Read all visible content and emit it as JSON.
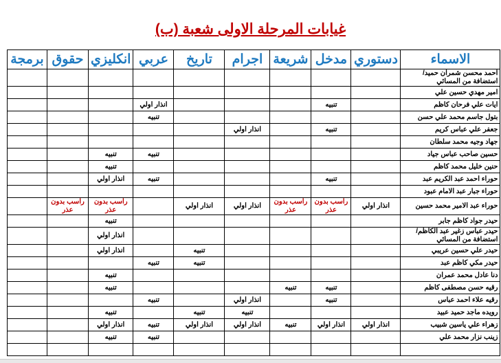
{
  "document": {
    "title": "غيابات المرحلة الاولى شعبة (ب)",
    "colors": {
      "title": "#c00000",
      "header": "#1f7ac0",
      "fail_text": "#c00000"
    }
  },
  "table": {
    "headers": [
      "الاسماء",
      "دستوري",
      "مدخل",
      "شريعة",
      "اجرام",
      "تاريخ",
      "عربي",
      "انكليزي",
      "حقوق",
      "برمجة"
    ],
    "rows": [
      {
        "name": "احمد محسن شمران حميد/ استضافة من المسائي",
        "values": [
          "",
          "",
          "",
          "",
          "",
          "",
          "",
          "",
          ""
        ]
      },
      {
        "name": "امير مهدي حسين علي",
        "values": [
          "",
          "",
          "",
          "",
          "",
          "",
          "",
          "",
          ""
        ]
      },
      {
        "name": "ايات علي فرحان كاظم",
        "values": [
          "",
          "تنبيه",
          "",
          "",
          "",
          "انذار اولي",
          "",
          "",
          ""
        ]
      },
      {
        "name": "بتول جاسم محمد علي حسن",
        "values": [
          "",
          "",
          "",
          "",
          "",
          "تنبيه",
          "",
          "",
          ""
        ]
      },
      {
        "name": "جعفر علي عباس كريم",
        "values": [
          "",
          "تنبيه",
          "",
          "انذار اولي",
          "",
          "",
          "",
          "",
          ""
        ]
      },
      {
        "name": "جهاد وجيه محمد سلطان",
        "values": [
          "",
          "",
          "",
          "",
          "",
          "",
          "",
          "",
          ""
        ]
      },
      {
        "name": "حسين صاحب عباس جياد",
        "values": [
          "",
          "",
          "",
          "",
          "",
          "تنبيه",
          "تنبيه",
          "",
          ""
        ]
      },
      {
        "name": "حنين خليل محمد كاظم",
        "values": [
          "",
          "",
          "",
          "",
          "",
          "",
          "تنبيه",
          "",
          ""
        ]
      },
      {
        "name": "حوراء احمد عبد الكريم عبد",
        "values": [
          "",
          "تنبيه",
          "",
          "",
          "",
          "تنبيه",
          "انذار اولي",
          "",
          ""
        ]
      },
      {
        "name": "حوراء جبار عبد الامام عبود",
        "values": [
          "",
          "",
          "",
          "",
          "",
          "",
          "",
          "",
          ""
        ]
      },
      {
        "name": "حوراء عبد الامير محمد حسين",
        "values": [
          "انذار اولي",
          "راسب بدون عذر",
          "راسب بدون عذر",
          "انذار اولي",
          "انذار اولي",
          "",
          "راسب بدون عذر",
          "راسب بدون عذر",
          ""
        ]
      },
      {
        "name": "حيدر جواد كاظم جابر",
        "values": [
          "",
          "",
          "",
          "",
          "",
          "",
          "تنبيه",
          "",
          ""
        ]
      },
      {
        "name": "حيدر عباس زغير عبد الكاظم/ استضافة من المسائي",
        "values": [
          "",
          "",
          "",
          "",
          "",
          "",
          "انذار اولي",
          "",
          ""
        ]
      },
      {
        "name": "حيدر علي حسين عريبي",
        "values": [
          "",
          "",
          "",
          "",
          "تنبيه",
          "",
          "انذار اولي",
          "",
          ""
        ]
      },
      {
        "name": "حيدر مكي كاظم عبد",
        "values": [
          "",
          "",
          "",
          "",
          "تنبيه",
          "تنبيه",
          "",
          "",
          ""
        ]
      },
      {
        "name": "دنا عادل محمد عمران",
        "values": [
          "",
          "",
          "",
          "",
          "",
          "",
          "تنبيه",
          "",
          ""
        ]
      },
      {
        "name": "رقيه حسن مصطفى كاظم",
        "values": [
          "",
          "تنبيه",
          "تنبيه",
          "",
          "",
          "",
          "تنبيه",
          "",
          ""
        ]
      },
      {
        "name": "رقيه علاء احمد عباس",
        "values": [
          "",
          "تنبيه",
          "",
          "انذار اولي",
          "",
          "تنبيه",
          "",
          "",
          ""
        ]
      },
      {
        "name": "رويده ماجد حميد عبيد",
        "values": [
          "",
          "",
          "",
          "تنبيه",
          "تنبيه",
          "",
          "تنبيه",
          "",
          ""
        ]
      },
      {
        "name": "زهراء علي ياسين شبيب",
        "values": [
          "انذار اولي",
          "انذار اولي",
          "تنبيه",
          "انذار اولي",
          "انذار اولي",
          "تنبيه",
          "انذار اولي",
          "",
          ""
        ]
      },
      {
        "name": "زينب نزار محمد علي",
        "values": [
          "",
          "",
          "",
          "",
          "",
          "تنبيه",
          "تنبيه",
          "",
          ""
        ]
      }
    ]
  }
}
